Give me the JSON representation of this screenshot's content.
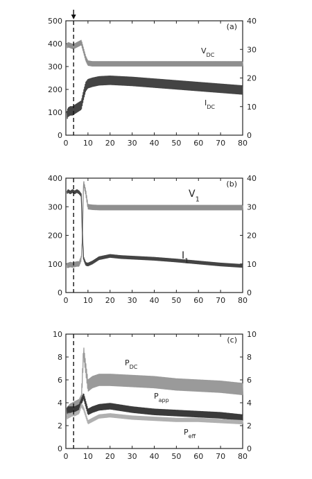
{
  "chart_data": [
    {
      "type": "line",
      "panel_label": "(a)",
      "x_ticks": [
        "0",
        "10",
        "20",
        "30",
        "40",
        "50",
        "60",
        "70",
        "80"
      ],
      "y_left_ticks": [
        "0",
        "100",
        "200",
        "300",
        "400",
        "500"
      ],
      "y_right_ticks": [
        "0",
        "10",
        "20",
        "30",
        "40"
      ],
      "xlim": [
        0,
        80
      ],
      "ylim_left": [
        0,
        500
      ],
      "ylim_right": [
        0,
        40
      ],
      "marker_x": 3.5,
      "arrow_at_x": 3.5,
      "series": [
        {
          "name_main": "V",
          "name_sub": "DC",
          "axis": "left",
          "color": "#8f8f8f",
          "x": [
            0.5,
            1,
            2,
            3,
            4,
            5,
            6,
            7,
            8,
            9,
            10,
            12,
            15,
            20,
            30,
            40,
            50,
            60,
            70,
            80
          ],
          "values": [
            390,
            395,
            392,
            388,
            390,
            395,
            400,
            405,
            370,
            335,
            315,
            312,
            312,
            312,
            312,
            312,
            312,
            312,
            312,
            312
          ],
          "ripple": 10
        },
        {
          "name_main": "I",
          "name_sub": "DC",
          "axis": "right",
          "color": "#444444",
          "x": [
            0.5,
            1,
            2,
            3,
            4,
            5,
            6,
            7,
            8,
            9,
            10,
            12,
            15,
            20,
            30,
            40,
            50,
            60,
            70,
            80
          ],
          "values": [
            7,
            8,
            8.5,
            8.5,
            9,
            9.5,
            10,
            10.5,
            14,
            17,
            18,
            18.5,
            19,
            19.2,
            18.8,
            18.2,
            17.6,
            17,
            16.4,
            15.8
          ],
          "ripple": 1.5
        }
      ]
    },
    {
      "type": "line",
      "panel_label": "(b)",
      "x_ticks": [
        "0",
        "10",
        "20",
        "30",
        "40",
        "50",
        "60",
        "70",
        "80"
      ],
      "y_left_ticks": [
        "0",
        "100",
        "200",
        "300",
        "400"
      ],
      "y_right_ticks": [
        "0",
        "10",
        "20",
        "30",
        "40"
      ],
      "xlim": [
        0,
        80
      ],
      "ylim_left": [
        0,
        400
      ],
      "ylim_right": [
        0,
        40
      ],
      "marker_x": 3.5,
      "series": [
        {
          "name_main": "V",
          "name_sub": "1",
          "axis": "left",
          "color": "#8f8f8f",
          "x": [
            0.5,
            1,
            2,
            3,
            4,
            5,
            6,
            7,
            7.5,
            8,
            9,
            10,
            12,
            15,
            20,
            30,
            40,
            50,
            60,
            70,
            80
          ],
          "values": [
            95,
            95,
            98,
            96,
            98,
            100,
            100,
            120,
            200,
            385,
            350,
            300,
            298,
            297,
            297,
            297,
            297,
            297,
            297,
            297,
            297
          ],
          "ripple": 8
        },
        {
          "name_main": "I",
          "name_sub": "1",
          "axis": "right",
          "color": "#444444",
          "x": [
            0.5,
            1,
            2,
            3,
            4,
            5,
            6,
            7,
            7.5,
            8,
            9,
            10,
            12,
            15,
            20,
            25,
            30,
            40,
            50,
            60,
            70,
            80
          ],
          "values": [
            35,
            35.5,
            35,
            35.5,
            35,
            35.5,
            35,
            34,
            20,
            12,
            10,
            9.8,
            10.5,
            12,
            12.8,
            12.4,
            12.2,
            11.8,
            11.2,
            10.5,
            9.8,
            9.3
          ],
          "ripple": 0.5
        }
      ]
    },
    {
      "type": "line",
      "panel_label": "(c)",
      "x_ticks": [
        "0",
        "10",
        "20",
        "30",
        "40",
        "50",
        "60",
        "70",
        "80"
      ],
      "y_left_ticks": [
        "0",
        "2",
        "4",
        "6",
        "8",
        "10"
      ],
      "y_right_ticks": [
        "0",
        "2",
        "4",
        "6",
        "8",
        "10"
      ],
      "xlim": [
        0,
        80
      ],
      "ylim_left": [
        0,
        10
      ],
      "ylim_right": [
        0,
        10
      ],
      "marker_x": 3.5,
      "series": [
        {
          "name_main": "P",
          "name_sub": "DC",
          "axis": "left",
          "color": "#9a9a9a",
          "x": [
            0.5,
            1,
            2,
            3,
            4,
            5,
            6,
            7,
            8,
            9,
            10,
            12,
            15,
            20,
            30,
            40,
            50,
            60,
            70,
            80
          ],
          "values": [
            3.1,
            3.2,
            3.4,
            3.5,
            3.6,
            3.7,
            3.8,
            4.2,
            8.5,
            7.0,
            5.5,
            5.8,
            6.0,
            6.0,
            5.9,
            5.8,
            5.6,
            5.5,
            5.4,
            5.2
          ],
          "ripple": 0.5
        },
        {
          "name_main": "P",
          "name_sub": "app",
          "axis": "left",
          "color": "#3a3a3a",
          "x": [
            0.5,
            1,
            2,
            3,
            4,
            5,
            6,
            7,
            8,
            9,
            10,
            12,
            15,
            20,
            30,
            40,
            50,
            60,
            70,
            80
          ],
          "values": [
            3.3,
            3.4,
            3.4,
            3.4,
            3.4,
            3.5,
            3.6,
            4.1,
            4.6,
            3.9,
            3.2,
            3.4,
            3.6,
            3.7,
            3.4,
            3.2,
            3.1,
            3.0,
            2.9,
            2.7
          ],
          "ripple": 0.25
        },
        {
          "name_main": "P",
          "name_sub": "eff",
          "axis": "left",
          "color": "#b0b0b0",
          "x": [
            0.5,
            1,
            2,
            3,
            4,
            5,
            6,
            7,
            8,
            9,
            10,
            12,
            15,
            20,
            30,
            40,
            50,
            60,
            70,
            80
          ],
          "values": [
            2.7,
            2.8,
            2.9,
            3.0,
            3.0,
            3.1,
            3.2,
            3.8,
            3.5,
            2.9,
            2.3,
            2.5,
            2.8,
            2.9,
            2.7,
            2.6,
            2.5,
            2.5,
            2.4,
            2.3
          ],
          "ripple": 0.15
        }
      ]
    }
  ]
}
